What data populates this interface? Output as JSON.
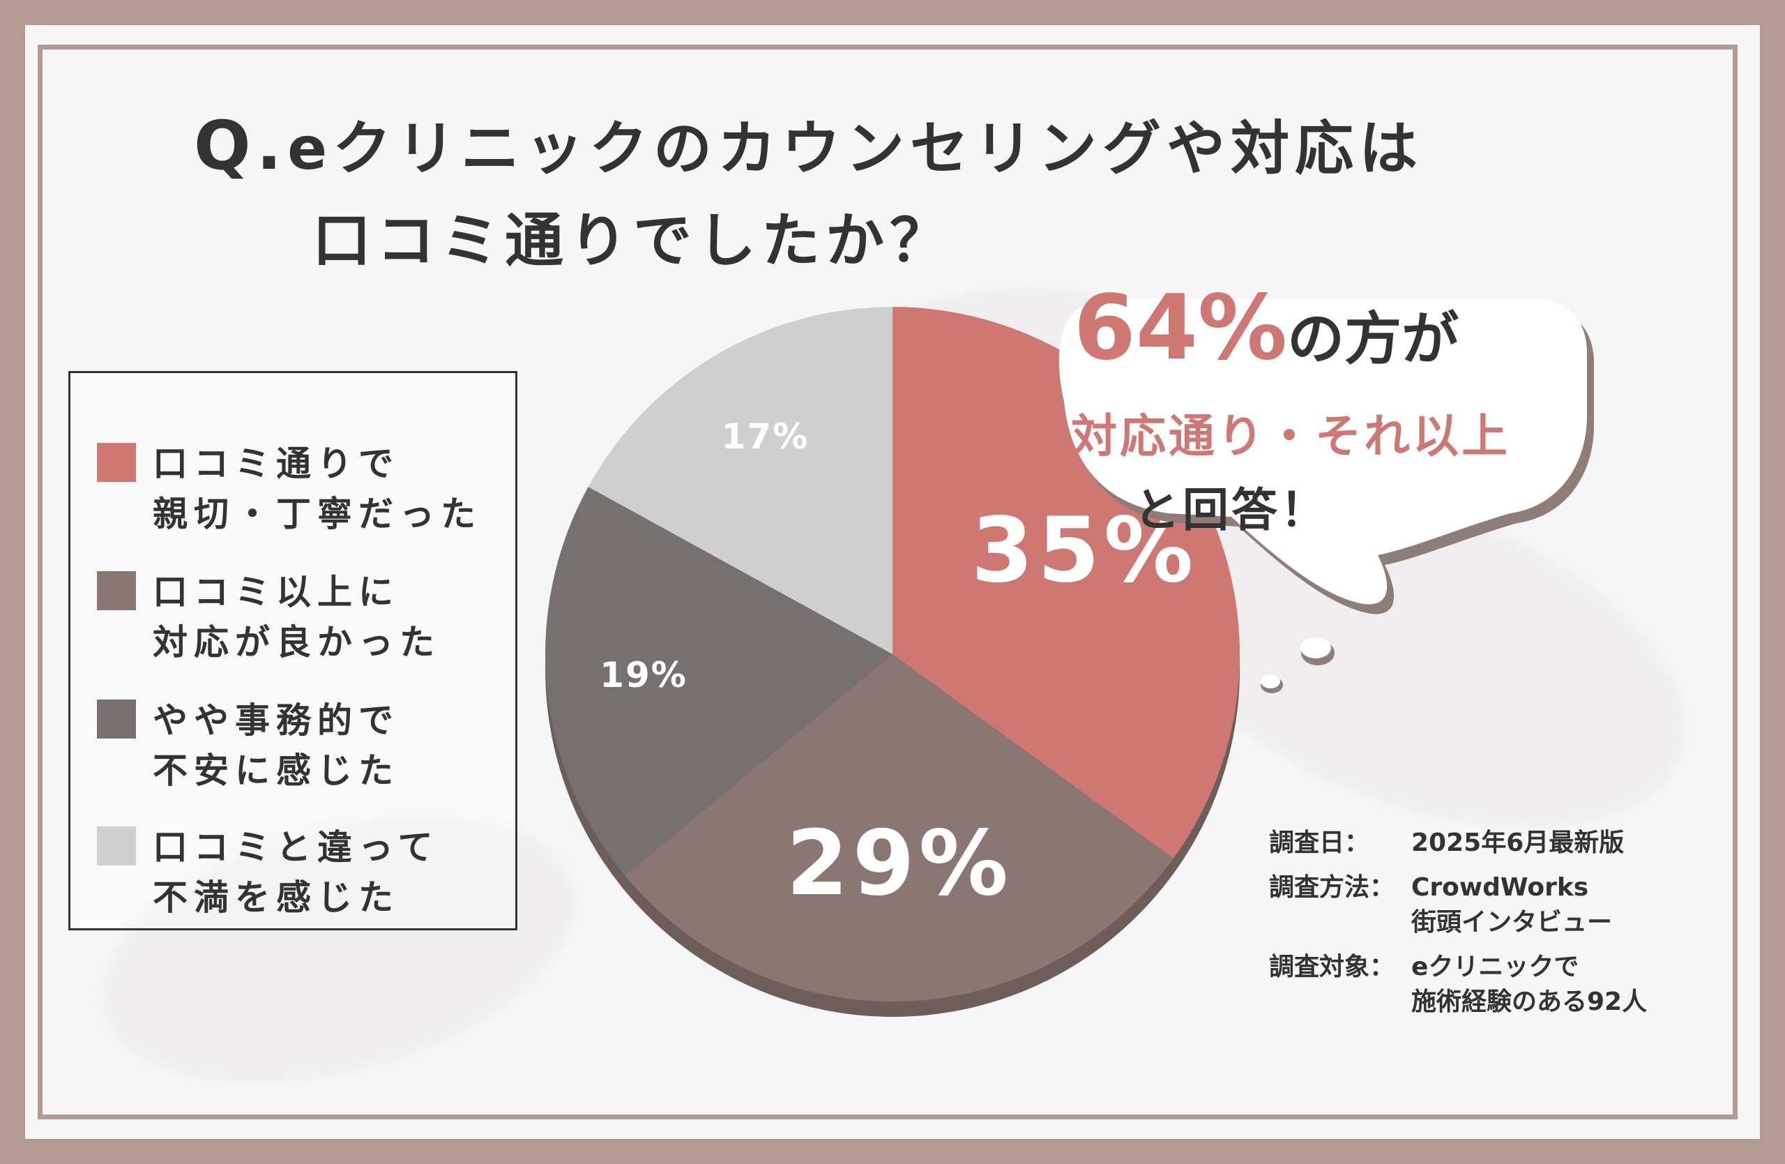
{
  "title": {
    "line1_q": "Q.",
    "line1": "eクリニックのカウンセリングや対応は",
    "line2": "口コミ通りでしたか？"
  },
  "chart_data": {
    "type": "pie",
    "title": "Q.eクリニックのカウンセリングや対応は口コミ通りでしたか？",
    "slices": [
      {
        "label": "口コミ通りで親切・丁寧だった",
        "value": 35,
        "display": "35%",
        "color": "#cf7873"
      },
      {
        "label": "口コミ以上に対応が良かった",
        "value": 29,
        "display": "29%",
        "color": "#8a7673"
      },
      {
        "label": "やや事務的で不安に感じた",
        "value": 19,
        "display": "19%",
        "color": "#767170"
      },
      {
        "label": "口コミと違って不満を感じた",
        "value": 17,
        "display": "17%",
        "color": "#d0cfcf"
      }
    ],
    "legend_position": "left"
  },
  "legend": [
    {
      "line1": "口コミ通りで",
      "line2": "親切・丁寧だった",
      "color": "#cf7873"
    },
    {
      "line1": "口コミ以上に",
      "line2": "対応が良かった",
      "color": "#8a7673"
    },
    {
      "line1": "やや事務的で",
      "line2": "不安に感じた",
      "color": "#767170"
    },
    {
      "line1": "口コミと違って",
      "line2": "不満を感じた",
      "color": "#d0cfcf"
    }
  ],
  "callout": {
    "percent": "64%",
    "percent_suffix": "の方が",
    "highlight": "対応通り・それ以上",
    "ending": "と回答！"
  },
  "survey": {
    "date_label": "調査日：",
    "date_value": "2025年6月最新版",
    "method_label": "調査方法：",
    "method_value1": "CrowdWorks",
    "method_value2": "街頭インタビュー",
    "target_label": "調査対象：",
    "target_value1": "eクリニックで",
    "target_value2": "施術経験のある92人"
  },
  "colors": {
    "frame": "#b39b93",
    "accent": "#cf7873",
    "text": "#333333"
  }
}
